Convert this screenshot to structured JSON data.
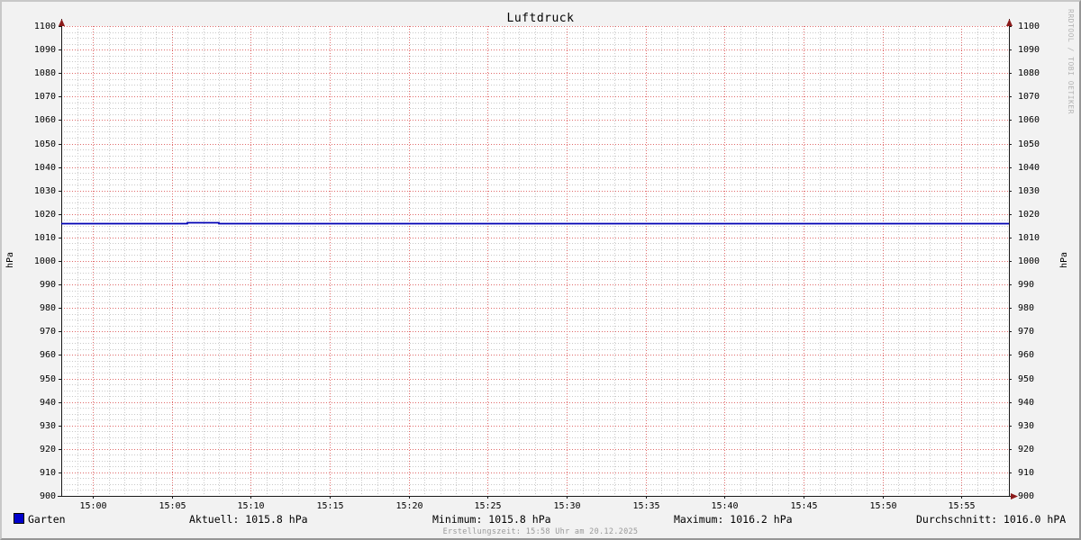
{
  "title": "Luftdruck",
  "watermark": "RRDTOOL / TOBI OETIKER",
  "footer": "Erstellungszeit: 15:58 Uhr am 20.12.2025",
  "y_axis_unit_left": "hPa",
  "y_axis_unit_right": "hPa",
  "legend": {
    "series_label": "Garten"
  },
  "stats": {
    "aktuell": "Aktuell: 1015.8 hPa",
    "minimum": "Minimum: 1015.8 hPa",
    "maximum": "Maximum: 1016.2 hPa",
    "durchschnitt": "Durchschnitt: 1016.0 hPA"
  },
  "colors": {
    "background": "#f2f2f2",
    "canvas": "#ffffff",
    "grid_minor": "#c9c9c9",
    "grid_major": "#e06a6a",
    "axis": "#1a1a1a",
    "arrow": "#8b1a1a",
    "series_line": "#0000b4",
    "legend_square": "#0000cc",
    "watermark_text": "#b4b4b4",
    "footer_text": "#999999"
  },
  "chart_data": {
    "type": "line",
    "title": "Luftdruck",
    "xlabel": "",
    "ylabel": "hPa",
    "grid": true,
    "legend_position": "bottom-left",
    "ylim": [
      900,
      1100
    ],
    "y_tick_step": 10,
    "y_minor_step": 2.5,
    "y_ticks": [
      900,
      910,
      920,
      930,
      940,
      950,
      960,
      970,
      980,
      990,
      1000,
      1010,
      1020,
      1030,
      1040,
      1050,
      1060,
      1070,
      1080,
      1090,
      1100
    ],
    "x_range_minutes": [
      -2,
      58
    ],
    "x_minor_step_min": 1,
    "x_ticks": [
      {
        "minute": 0,
        "label": "15:00"
      },
      {
        "minute": 5,
        "label": "15:05"
      },
      {
        "minute": 10,
        "label": "15:10"
      },
      {
        "minute": 15,
        "label": "15:15"
      },
      {
        "minute": 20,
        "label": "15:20"
      },
      {
        "minute": 25,
        "label": "15:25"
      },
      {
        "minute": 30,
        "label": "15:30"
      },
      {
        "minute": 35,
        "label": "15:35"
      },
      {
        "minute": 40,
        "label": "15:40"
      },
      {
        "minute": 45,
        "label": "15:45"
      },
      {
        "minute": 50,
        "label": "15:50"
      },
      {
        "minute": 55,
        "label": "15:55"
      }
    ],
    "series": [
      {
        "name": "Garten",
        "color": "#0000b4",
        "unit": "hPa",
        "points_min_hpa": [
          [
            -2,
            1016.0
          ],
          [
            6,
            1016.0
          ],
          [
            6,
            1016.2
          ],
          [
            8,
            1016.2
          ],
          [
            8,
            1016.0
          ],
          [
            44,
            1016.0
          ],
          [
            44,
            1015.8
          ],
          [
            58,
            1015.8
          ]
        ],
        "stats": {
          "aktuell_hpa": 1015.8,
          "minimum_hpa": 1015.8,
          "maximum_hpa": 1016.2,
          "durchschnitt_hpa": 1016.0
        }
      }
    ]
  }
}
